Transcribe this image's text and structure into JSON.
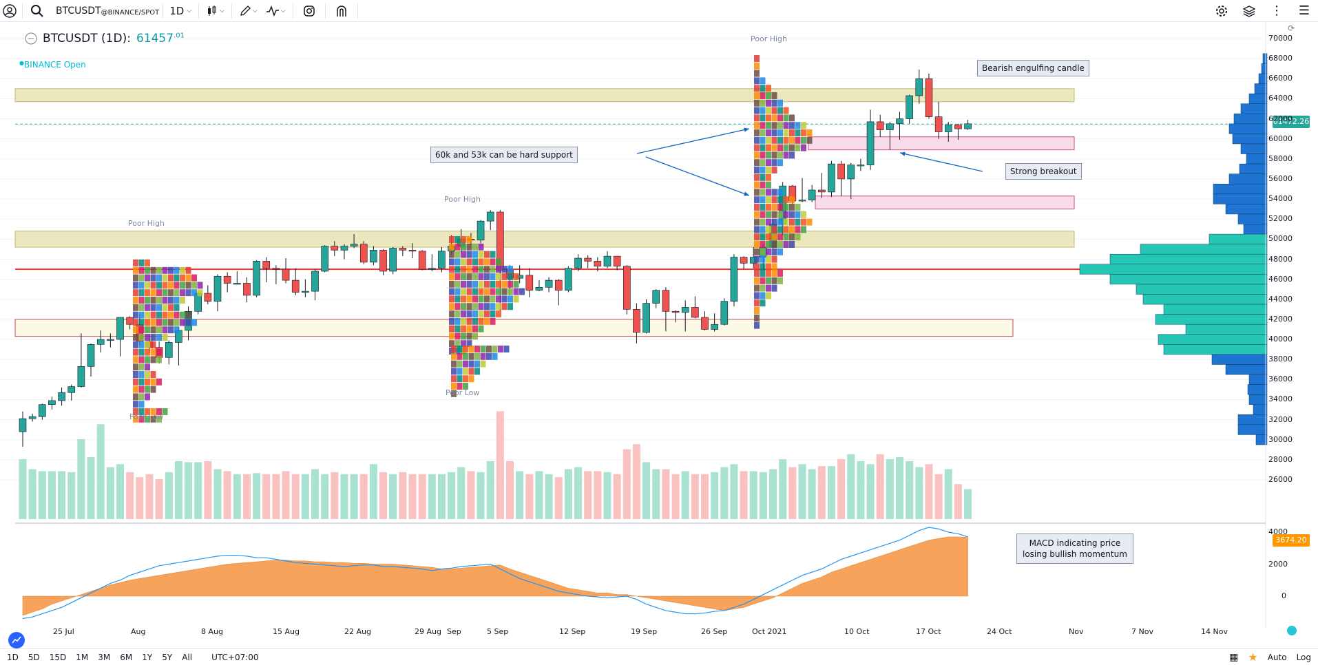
{
  "toolbar": {
    "symbol": "BTCUSDT",
    "exchange": "@BINANCE/SPOT",
    "interval": "1D"
  },
  "legend": {
    "title": "BTCUSDT (1D):",
    "price": "61457",
    "price_sup": ".01",
    "status": "BINANCE Open"
  },
  "annotations": {
    "support": "60k and 53k can be hard support",
    "bearish": "Bearish engulfing candle",
    "breakout": "Strong breakout",
    "macd": "MACD indicating price\nlosing bullish momentum"
  },
  "labels": {
    "poor_high": "Poor High",
    "poor_low": "Poor Low"
  },
  "price_axis": [
    "70000",
    "68000",
    "66000",
    "64000",
    "62000",
    "60000",
    "58000",
    "56000",
    "54000",
    "52000",
    "50000",
    "48000",
    "46000",
    "44000",
    "42000",
    "40000",
    "38000",
    "36000",
    "34000",
    "32000",
    "30000",
    "28000",
    "26000"
  ],
  "macd_axis": [
    "4000",
    "2000",
    "0"
  ],
  "current_price_badge": "61472.26",
  "macd_badge": "3674.20",
  "time_axis": [
    "25 Jul",
    "Aug",
    "8 Aug",
    "15 Aug",
    "22 Aug",
    "29 Aug",
    "Sep",
    "5 Sep",
    "12 Sep",
    "19 Sep",
    "26 Sep",
    "Oct 2021",
    "10 Oct",
    "17 Oct",
    "24 Oct",
    "Nov",
    "7 Nov",
    "14 Nov"
  ],
  "bottom": {
    "ranges": [
      "1D",
      "5D",
      "15D",
      "1M",
      "3M",
      "6M",
      "1Y",
      "5Y",
      "All"
    ],
    "timezone": "UTC+07:00",
    "auto": "Auto",
    "log": "Log"
  },
  "colors": {
    "up": "#26a69a",
    "down": "#ef5350",
    "vp_upper": "#1e74d0",
    "vp_lower": "#26c6b4",
    "macd_area": "#f7a35c",
    "macd_line": "#2196f3",
    "zone_yellow": "#e8e4b4",
    "zone_pink": "#f7d6e6",
    "red_line": "#e53935"
  },
  "chart_data": {
    "type": "candlestick",
    "symbol": "BTCUSDT",
    "interval": "1D",
    "ylim": [
      26000,
      70000
    ],
    "dates": [
      "2021-07-20",
      "2021-07-21",
      "2021-07-22",
      "2021-07-23",
      "2021-07-24",
      "2021-07-25",
      "2021-07-26",
      "2021-07-27",
      "2021-07-28",
      "2021-07-29",
      "2021-07-30",
      "2021-07-31",
      "2021-08-01",
      "2021-08-02",
      "2021-08-03",
      "2021-08-04",
      "2021-08-05",
      "2021-08-06",
      "2021-08-07",
      "2021-08-08",
      "2021-08-09",
      "2021-08-10",
      "2021-08-11",
      "2021-08-12",
      "2021-08-13",
      "2021-08-14",
      "2021-08-15",
      "2021-08-16",
      "2021-08-17",
      "2021-08-18",
      "2021-08-19",
      "2021-08-20",
      "2021-08-21",
      "2021-08-22",
      "2021-08-23",
      "2021-08-24",
      "2021-08-25",
      "2021-08-26",
      "2021-08-27",
      "2021-08-28",
      "2021-08-29",
      "2021-08-30",
      "2021-08-31",
      "2021-09-01",
      "2021-09-02",
      "2021-09-03",
      "2021-09-04",
      "2021-09-05",
      "2021-09-06",
      "2021-09-07",
      "2021-09-08",
      "2021-09-09",
      "2021-09-10",
      "2021-09-11",
      "2021-09-12",
      "2021-09-13",
      "2021-09-14",
      "2021-09-15",
      "2021-09-16",
      "2021-09-17",
      "2021-09-18",
      "2021-09-19",
      "2021-09-20",
      "2021-09-21",
      "2021-09-22",
      "2021-09-23",
      "2021-09-24",
      "2021-09-25",
      "2021-09-26",
      "2021-09-27",
      "2021-09-28",
      "2021-09-29",
      "2021-09-30",
      "2021-10-01",
      "2021-10-02",
      "2021-10-03",
      "2021-10-04",
      "2021-10-05",
      "2021-10-06",
      "2021-10-07",
      "2021-10-08",
      "2021-10-09",
      "2021-10-10",
      "2021-10-11",
      "2021-10-12",
      "2021-10-13",
      "2021-10-14",
      "2021-10-15",
      "2021-10-16",
      "2021-10-17",
      "2021-10-18",
      "2021-10-19",
      "2021-10-20",
      "2021-10-21",
      "2021-10-22",
      "2021-10-23",
      "2021-10-24",
      "2021-10-25"
    ],
    "candles": [
      [
        30800,
        32800,
        29300,
        32100
      ],
      [
        32100,
        32600,
        31800,
        32300
      ],
      [
        32300,
        33600,
        32000,
        33500
      ],
      [
        33500,
        34300,
        33000,
        33900
      ],
      [
        33900,
        35200,
        33400,
        34700
      ],
      [
        34700,
        35500,
        33900,
        35300
      ],
      [
        35300,
        40600,
        35200,
        37300
      ],
      [
        37300,
        39600,
        36300,
        39500
      ],
      [
        39500,
        40900,
        38700,
        40000
      ],
      [
        40000,
        40600,
        39200,
        40000
      ],
      [
        40000,
        42200,
        38300,
        42200
      ],
      [
        42200,
        42300,
        41000,
        41500
      ],
      [
        41500,
        42500,
        39400,
        39800
      ],
      [
        39800,
        40500,
        38700,
        39200
      ],
      [
        39200,
        39800,
        37600,
        38200
      ],
      [
        38200,
        39900,
        37500,
        39700
      ],
      [
        39700,
        41200,
        37400,
        40900
      ],
      [
        40900,
        43300,
        39900,
        42800
      ],
      [
        42800,
        44700,
        42500,
        44600
      ],
      [
        44600,
        45400,
        43500,
        43800
      ],
      [
        43800,
        46500,
        42800,
        46300
      ],
      [
        46300,
        46700,
        44700,
        45600
      ],
      [
        45600,
        46800,
        45500,
        45600
      ],
      [
        45600,
        46200,
        43700,
        44400
      ],
      [
        44400,
        47900,
        44200,
        47800
      ],
      [
        47800,
        48200,
        45700,
        47100
      ],
      [
        47100,
        47400,
        45500,
        47000
      ],
      [
        47000,
        48100,
        45600,
        45900
      ],
      [
        45900,
        47100,
        44400,
        44700
      ],
      [
        44700,
        46000,
        44200,
        44800
      ],
      [
        44800,
        47000,
        43900,
        46800
      ],
      [
        46800,
        49400,
        46700,
        49300
      ],
      [
        49300,
        49800,
        48300,
        48900
      ],
      [
        48900,
        49500,
        48000,
        49300
      ],
      [
        49300,
        50500,
        49100,
        49500
      ],
      [
        49500,
        49800,
        47500,
        47700
      ],
      [
        47700,
        49300,
        47400,
        48900
      ],
      [
        48900,
        49000,
        46400,
        46800
      ],
      [
        46800,
        49200,
        46500,
        49100
      ],
      [
        49100,
        49300,
        48300,
        48900
      ],
      [
        48900,
        49600,
        48100,
        48800
      ],
      [
        48800,
        48900,
        46900,
        47000
      ],
      [
        47000,
        48500,
        46800,
        47100
      ],
      [
        47100,
        49200,
        46700,
        48800
      ],
      [
        48800,
        50400,
        48400,
        49300
      ],
      [
        49300,
        51000,
        48600,
        50000
      ],
      [
        50000,
        50600,
        49500,
        49900
      ],
      [
        49900,
        51900,
        49600,
        51800
      ],
      [
        51800,
        52900,
        50900,
        52700
      ],
      [
        52700,
        52900,
        42800,
        46900
      ],
      [
        46900,
        47400,
        44400,
        46100
      ],
      [
        46100,
        47400,
        45600,
        46400
      ],
      [
        46400,
        47100,
        44200,
        44900
      ],
      [
        44900,
        45900,
        44800,
        45200
      ],
      [
        45200,
        46200,
        44700,
        45900
      ],
      [
        45900,
        46000,
        43400,
        44900
      ],
      [
        44900,
        47300,
        44700,
        47100
      ],
      [
        47100,
        48500,
        46800,
        48100
      ],
      [
        48100,
        48400,
        47100,
        47800
      ],
      [
        47800,
        48200,
        46800,
        47300
      ],
      [
        47300,
        48800,
        47100,
        48300
      ],
      [
        48300,
        48300,
        46900,
        47300
      ],
      [
        47300,
        47400,
        42500,
        43000
      ],
      [
        43000,
        43600,
        39600,
        40700
      ],
      [
        40700,
        44000,
        40600,
        43600
      ],
      [
        43600,
        45000,
        43100,
        44900
      ],
      [
        44900,
        45200,
        40800,
        42800
      ],
      [
        42800,
        42900,
        41700,
        42700
      ],
      [
        42700,
        43900,
        40800,
        43200
      ],
      [
        43200,
        44300,
        42100,
        42200
      ],
      [
        42200,
        42800,
        40900,
        41000
      ],
      [
        41000,
        42600,
        40800,
        41500
      ],
      [
        41500,
        44100,
        41400,
        43800
      ],
      [
        43800,
        48500,
        43300,
        48200
      ],
      [
        48200,
        48300,
        47000,
        47600
      ],
      [
        47600,
        49200,
        47100,
        48200
      ],
      [
        48200,
        49500,
        46900,
        49200
      ],
      [
        49200,
        51900,
        49100,
        51500
      ],
      [
        51500,
        55700,
        50400,
        55300
      ],
      [
        55300,
        55400,
        53500,
        53800
      ],
      [
        53800,
        56100,
        53700,
        53900
      ],
      [
        53900,
        55400,
        53700,
        54900
      ],
      [
        54900,
        56600,
        54100,
        54700
      ],
      [
        54700,
        57800,
        54200,
        57500
      ],
      [
        57500,
        57800,
        54300,
        56000
      ],
      [
        56000,
        57600,
        54000,
        57400
      ],
      [
        57400,
        58000,
        56800,
        57400
      ],
      [
        57400,
        62900,
        56900,
        61700
      ],
      [
        61700,
        62400,
        60200,
        60900
      ],
      [
        60900,
        61700,
        58900,
        61500
      ],
      [
        61500,
        62700,
        59900,
        62000
      ],
      [
        62000,
        64400,
        61500,
        64300
      ],
      [
        64300,
        66900,
        63500,
        66000
      ],
      [
        66000,
        66500,
        62000,
        62200
      ],
      [
        62200,
        63700,
        60000,
        60700
      ],
      [
        60700,
        61700,
        59700,
        61400
      ],
      [
        61400,
        61500,
        59900,
        61000
      ],
      [
        61000,
        61900,
        60900,
        61500
      ]
    ],
    "macd_ylim": [
      -1500,
      4500
    ],
    "zones": [
      {
        "kind": "supply",
        "low": 63700,
        "high": 65000
      },
      {
        "kind": "supply",
        "low": 49200,
        "high": 50800
      },
      {
        "kind": "demand",
        "low": 40300,
        "high": 42000
      },
      {
        "kind": "support",
        "low": 58900,
        "high": 60200
      },
      {
        "kind": "support",
        "low": 53000,
        "high": 54300
      }
    ],
    "red_line_price": 47000,
    "current_price": 61472.26
  }
}
